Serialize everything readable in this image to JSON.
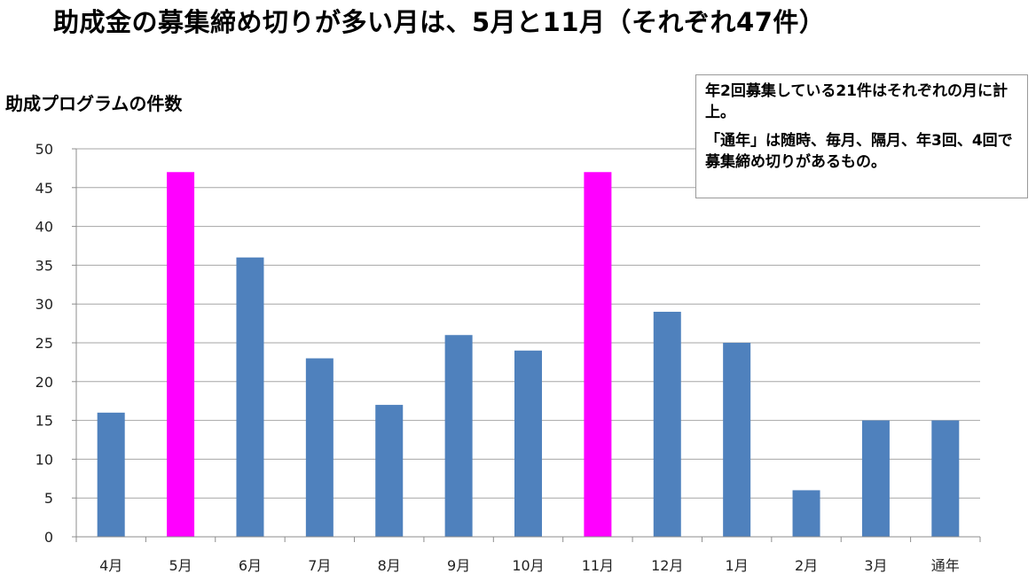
{
  "title": "助成金の募集締め切りが多い月は、5月と11月（それぞれ47件）",
  "note": [
    "年2回募集している21件はそれぞれの月に計上。",
    "「通年」は随時、毎月、隔月、年3回、4回で募集締め切りがあるもの。"
  ],
  "colors": {
    "normal": "#4f81bd",
    "highlight": "#ff00ff",
    "grid": "#a6a6a6"
  },
  "chart_data": {
    "type": "bar",
    "title": "助成金の募集締め切りが多い月は、5月と11月（それぞれ47件）",
    "xlabel": "",
    "ylabel": "助成プログラムの件数",
    "categories": [
      "4月",
      "5月",
      "6月",
      "7月",
      "8月",
      "9月",
      "10月",
      "11月",
      "12月",
      "1月",
      "2月",
      "3月",
      "通年"
    ],
    "values": [
      16,
      47,
      36,
      23,
      17,
      26,
      24,
      47,
      29,
      25,
      6,
      15,
      15
    ],
    "highlighted": [
      "5月",
      "11月"
    ],
    "ylim": [
      0,
      50
    ],
    "yticks": [
      0,
      5,
      10,
      15,
      20,
      25,
      30,
      35,
      40,
      45,
      50
    ],
    "grid": true,
    "legend": "none"
  }
}
